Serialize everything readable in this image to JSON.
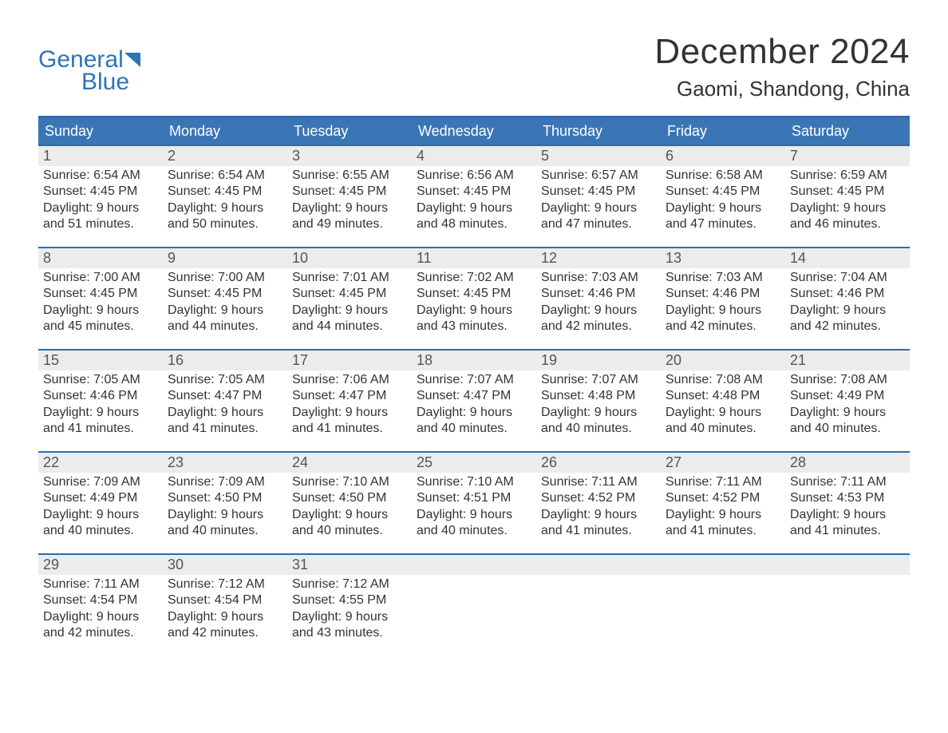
{
  "brand": {
    "word_general": "General",
    "word_blue": "Blue",
    "text_color": "#2e75b6",
    "sail_color": "#2e75b6"
  },
  "header": {
    "month_title": "December 2024",
    "location": "Gaomi, Shandong, China"
  },
  "calendar": {
    "accent_color": "#3a76b5",
    "accent_border_color": "#2e6ca8",
    "daynum_bg": "#ececec",
    "text_color": "#333333",
    "day_labels": [
      "Sunday",
      "Monday",
      "Tuesday",
      "Wednesday",
      "Thursday",
      "Friday",
      "Saturday"
    ],
    "weeks": [
      [
        {
          "n": "1",
          "sr": "Sunrise: 6:54 AM",
          "ss": "Sunset: 4:45 PM",
          "d1": "Daylight: 9 hours",
          "d2": "and 51 minutes."
        },
        {
          "n": "2",
          "sr": "Sunrise: 6:54 AM",
          "ss": "Sunset: 4:45 PM",
          "d1": "Daylight: 9 hours",
          "d2": "and 50 minutes."
        },
        {
          "n": "3",
          "sr": "Sunrise: 6:55 AM",
          "ss": "Sunset: 4:45 PM",
          "d1": "Daylight: 9 hours",
          "d2": "and 49 minutes."
        },
        {
          "n": "4",
          "sr": "Sunrise: 6:56 AM",
          "ss": "Sunset: 4:45 PM",
          "d1": "Daylight: 9 hours",
          "d2": "and 48 minutes."
        },
        {
          "n": "5",
          "sr": "Sunrise: 6:57 AM",
          "ss": "Sunset: 4:45 PM",
          "d1": "Daylight: 9 hours",
          "d2": "and 47 minutes."
        },
        {
          "n": "6",
          "sr": "Sunrise: 6:58 AM",
          "ss": "Sunset: 4:45 PM",
          "d1": "Daylight: 9 hours",
          "d2": "and 47 minutes."
        },
        {
          "n": "7",
          "sr": "Sunrise: 6:59 AM",
          "ss": "Sunset: 4:45 PM",
          "d1": "Daylight: 9 hours",
          "d2": "and 46 minutes."
        }
      ],
      [
        {
          "n": "8",
          "sr": "Sunrise: 7:00 AM",
          "ss": "Sunset: 4:45 PM",
          "d1": "Daylight: 9 hours",
          "d2": "and 45 minutes."
        },
        {
          "n": "9",
          "sr": "Sunrise: 7:00 AM",
          "ss": "Sunset: 4:45 PM",
          "d1": "Daylight: 9 hours",
          "d2": "and 44 minutes."
        },
        {
          "n": "10",
          "sr": "Sunrise: 7:01 AM",
          "ss": "Sunset: 4:45 PM",
          "d1": "Daylight: 9 hours",
          "d2": "and 44 minutes."
        },
        {
          "n": "11",
          "sr": "Sunrise: 7:02 AM",
          "ss": "Sunset: 4:45 PM",
          "d1": "Daylight: 9 hours",
          "d2": "and 43 minutes."
        },
        {
          "n": "12",
          "sr": "Sunrise: 7:03 AM",
          "ss": "Sunset: 4:46 PM",
          "d1": "Daylight: 9 hours",
          "d2": "and 42 minutes."
        },
        {
          "n": "13",
          "sr": "Sunrise: 7:03 AM",
          "ss": "Sunset: 4:46 PM",
          "d1": "Daylight: 9 hours",
          "d2": "and 42 minutes."
        },
        {
          "n": "14",
          "sr": "Sunrise: 7:04 AM",
          "ss": "Sunset: 4:46 PM",
          "d1": "Daylight: 9 hours",
          "d2": "and 42 minutes."
        }
      ],
      [
        {
          "n": "15",
          "sr": "Sunrise: 7:05 AM",
          "ss": "Sunset: 4:46 PM",
          "d1": "Daylight: 9 hours",
          "d2": "and 41 minutes."
        },
        {
          "n": "16",
          "sr": "Sunrise: 7:05 AM",
          "ss": "Sunset: 4:47 PM",
          "d1": "Daylight: 9 hours",
          "d2": "and 41 minutes."
        },
        {
          "n": "17",
          "sr": "Sunrise: 7:06 AM",
          "ss": "Sunset: 4:47 PM",
          "d1": "Daylight: 9 hours",
          "d2": "and 41 minutes."
        },
        {
          "n": "18",
          "sr": "Sunrise: 7:07 AM",
          "ss": "Sunset: 4:47 PM",
          "d1": "Daylight: 9 hours",
          "d2": "and 40 minutes."
        },
        {
          "n": "19",
          "sr": "Sunrise: 7:07 AM",
          "ss": "Sunset: 4:48 PM",
          "d1": "Daylight: 9 hours",
          "d2": "and 40 minutes."
        },
        {
          "n": "20",
          "sr": "Sunrise: 7:08 AM",
          "ss": "Sunset: 4:48 PM",
          "d1": "Daylight: 9 hours",
          "d2": "and 40 minutes."
        },
        {
          "n": "21",
          "sr": "Sunrise: 7:08 AM",
          "ss": "Sunset: 4:49 PM",
          "d1": "Daylight: 9 hours",
          "d2": "and 40 minutes."
        }
      ],
      [
        {
          "n": "22",
          "sr": "Sunrise: 7:09 AM",
          "ss": "Sunset: 4:49 PM",
          "d1": "Daylight: 9 hours",
          "d2": "and 40 minutes."
        },
        {
          "n": "23",
          "sr": "Sunrise: 7:09 AM",
          "ss": "Sunset: 4:50 PM",
          "d1": "Daylight: 9 hours",
          "d2": "and 40 minutes."
        },
        {
          "n": "24",
          "sr": "Sunrise: 7:10 AM",
          "ss": "Sunset: 4:50 PM",
          "d1": "Daylight: 9 hours",
          "d2": "and 40 minutes."
        },
        {
          "n": "25",
          "sr": "Sunrise: 7:10 AM",
          "ss": "Sunset: 4:51 PM",
          "d1": "Daylight: 9 hours",
          "d2": "and 40 minutes."
        },
        {
          "n": "26",
          "sr": "Sunrise: 7:11 AM",
          "ss": "Sunset: 4:52 PM",
          "d1": "Daylight: 9 hours",
          "d2": "and 41 minutes."
        },
        {
          "n": "27",
          "sr": "Sunrise: 7:11 AM",
          "ss": "Sunset: 4:52 PM",
          "d1": "Daylight: 9 hours",
          "d2": "and 41 minutes."
        },
        {
          "n": "28",
          "sr": "Sunrise: 7:11 AM",
          "ss": "Sunset: 4:53 PM",
          "d1": "Daylight: 9 hours",
          "d2": "and 41 minutes."
        }
      ],
      [
        {
          "n": "29",
          "sr": "Sunrise: 7:11 AM",
          "ss": "Sunset: 4:54 PM",
          "d1": "Daylight: 9 hours",
          "d2": "and 42 minutes."
        },
        {
          "n": "30",
          "sr": "Sunrise: 7:12 AM",
          "ss": "Sunset: 4:54 PM",
          "d1": "Daylight: 9 hours",
          "d2": "and 42 minutes."
        },
        {
          "n": "31",
          "sr": "Sunrise: 7:12 AM",
          "ss": "Sunset: 4:55 PM",
          "d1": "Daylight: 9 hours",
          "d2": "and 43 minutes."
        },
        null,
        null,
        null,
        null
      ]
    ]
  }
}
